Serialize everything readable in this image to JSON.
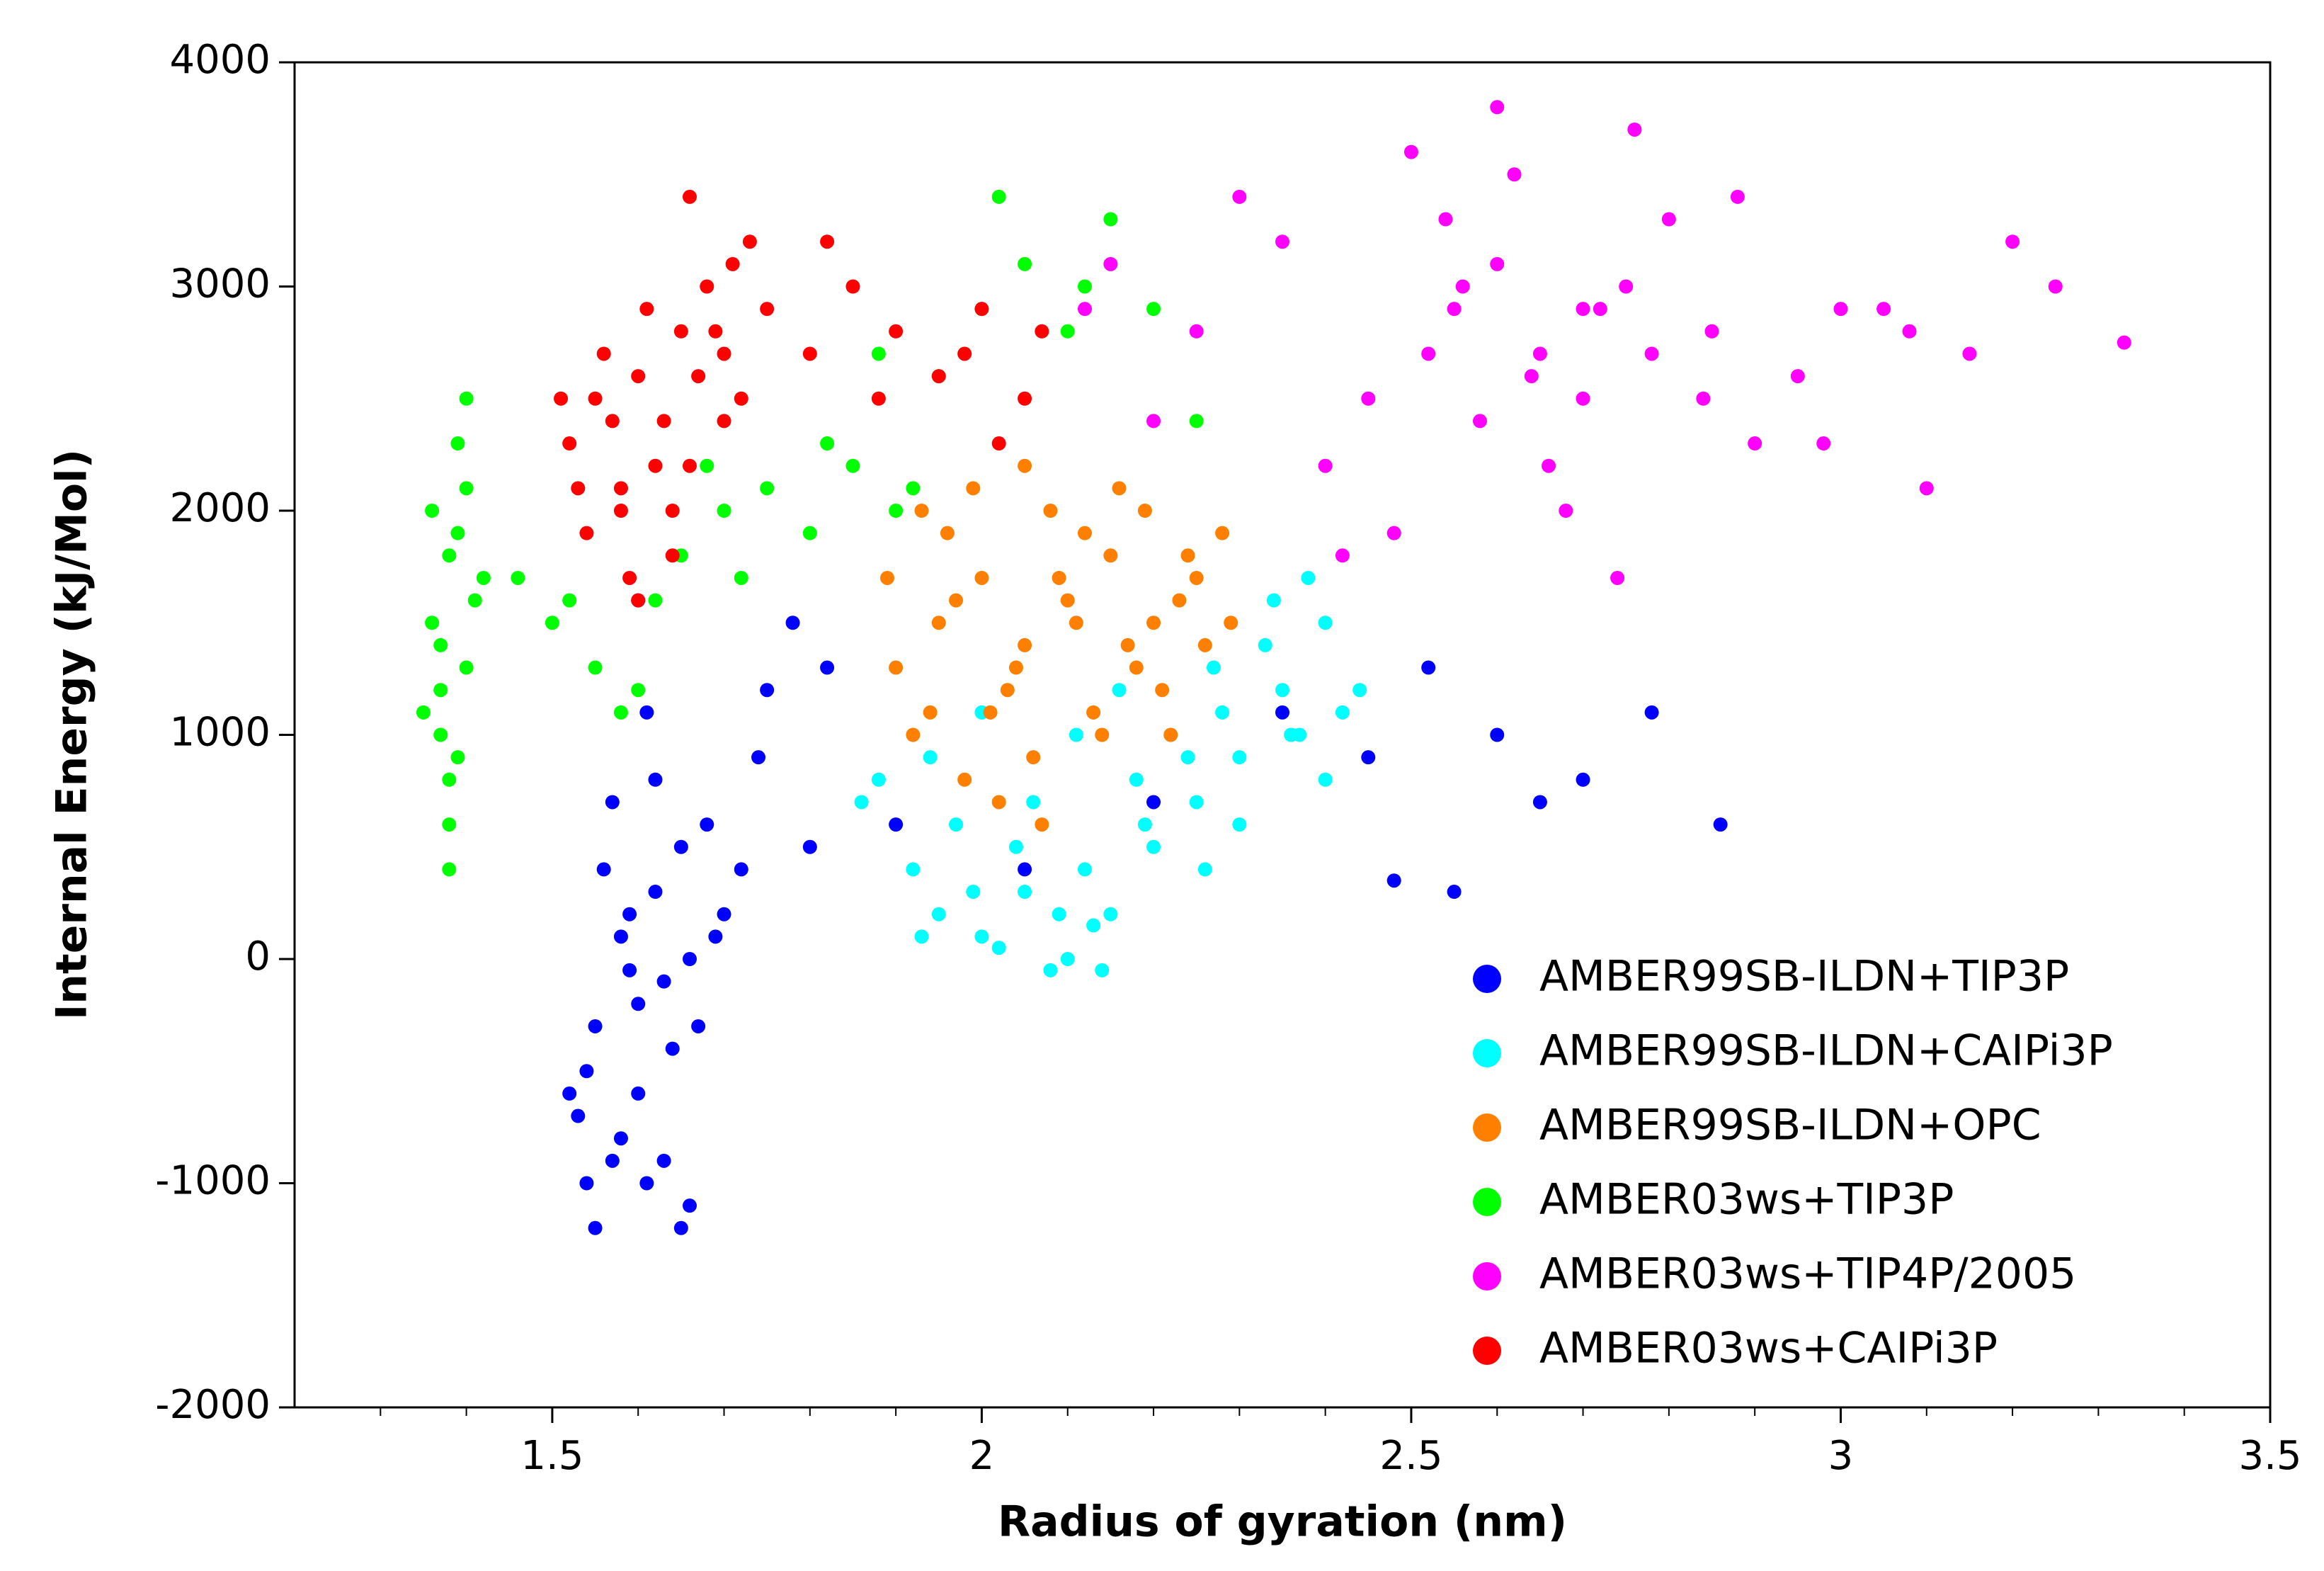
{
  "chart_data": {
    "type": "scatter",
    "xlabel": "Radius of gyration (nm)",
    "ylabel": "Internal Energy (kJ/Mol)",
    "xlim": [
      1.2,
      3.5
    ],
    "ylim": [
      -2000,
      4000
    ],
    "xticks": [
      1.5,
      2,
      2.5,
      3,
      3.5
    ],
    "xminorticks": [
      1.3,
      1.4,
      1.6,
      1.7,
      1.8,
      1.9,
      2.1,
      2.2,
      2.3,
      2.4,
      2.6,
      2.7,
      2.8,
      2.9,
      3.1,
      3.2,
      3.3,
      3.4
    ],
    "yticks": [
      -2000,
      -1000,
      0,
      1000,
      2000,
      3000,
      4000
    ],
    "legend_position": "lower-right",
    "series": [
      {
        "name": "AMBER99SB-ILDN+TIP3P",
        "color": "#0000ff",
        "x": [
          1.55,
          1.58,
          1.6,
          1.62,
          1.57,
          1.63,
          1.65,
          1.54,
          1.59,
          1.61,
          1.66,
          1.53,
          1.56,
          1.64,
          1.68,
          1.6,
          1.62,
          1.58,
          1.55,
          1.67,
          1.7,
          1.72,
          1.75,
          1.52,
          1.57,
          1.63,
          1.61,
          1.59,
          1.66,
          1.69,
          1.78,
          1.82,
          1.74,
          1.8,
          1.9,
          2.05,
          2.2,
          2.35,
          2.45,
          2.52,
          2.6,
          2.7,
          2.78,
          2.86,
          2.55,
          2.48,
          2.65,
          1.65,
          1.54,
          1.6
        ],
        "values": [
          -300,
          100,
          -600,
          300,
          -900,
          -100,
          500,
          -500,
          200,
          -1000,
          0,
          -700,
          400,
          -400,
          600,
          -200,
          800,
          -800,
          -1200,
          -300,
          200,
          400,
          1200,
          -600,
          700,
          -900,
          1100,
          -50,
          -1100,
          100,
          1500,
          1300,
          900,
          500,
          600,
          400,
          700,
          1100,
          900,
          1300,
          1000,
          800,
          1100,
          600,
          300,
          350,
          700,
          -1200,
          -1000,
          1600
        ]
      },
      {
        "name": "AMBER99SB-ILDN+CAIPi3P",
        "color": "#00ffff",
        "x": [
          1.88,
          1.92,
          1.95,
          2.0,
          2.05,
          2.1,
          2.15,
          2.2,
          2.25,
          2.3,
          2.35,
          2.4,
          2.42,
          1.9,
          1.97,
          2.02,
          2.08,
          2.12,
          2.18,
          2.22,
          2.28,
          2.33,
          2.38,
          1.86,
          1.94,
          2.0,
          2.06,
          2.11,
          2.16,
          2.24,
          2.3,
          2.36,
          2.4,
          2.44,
          1.99,
          2.04,
          2.13,
          2.19,
          2.27,
          2.34,
          1.93,
          2.09,
          2.26,
          2.37,
          2.14
        ],
        "values": [
          800,
          400,
          200,
          100,
          300,
          0,
          200,
          500,
          700,
          900,
          1200,
          1500,
          1100,
          1300,
          600,
          50,
          -50,
          400,
          800,
          1000,
          1100,
          1400,
          1700,
          700,
          900,
          1100,
          700,
          1000,
          1200,
          900,
          600,
          1000,
          800,
          1200,
          300,
          500,
          150,
          600,
          1300,
          1600,
          100,
          200,
          400,
          1000,
          -50
        ]
      },
      {
        "name": "AMBER99SB-ILDN+OPC",
        "color": "#ff8000",
        "x": [
          1.9,
          1.95,
          2.0,
          2.05,
          2.1,
          2.15,
          2.2,
          2.25,
          2.28,
          1.92,
          1.98,
          2.03,
          2.08,
          2.13,
          2.18,
          2.23,
          1.89,
          1.96,
          2.01,
          2.06,
          2.11,
          2.16,
          2.21,
          2.26,
          1.94,
          1.99,
          2.04,
          2.09,
          2.14,
          2.19,
          2.24,
          2.29,
          2.02,
          2.07,
          2.12,
          1.93,
          2.17,
          2.22,
          1.97,
          2.05
        ],
        "values": [
          1300,
          1500,
          1700,
          1400,
          1600,
          1800,
          1500,
          1700,
          1900,
          1000,
          800,
          1200,
          2000,
          1100,
          1300,
          1600,
          1700,
          1900,
          1100,
          900,
          1500,
          2100,
          1200,
          1400,
          1100,
          2100,
          1300,
          1700,
          1000,
          2000,
          1800,
          1500,
          700,
          600,
          1900,
          2000,
          1400,
          1000,
          1600,
          2200
        ]
      },
      {
        "name": "AMBER03ws+TIP3P",
        "color": "#00ff00",
        "x": [
          1.36,
          1.38,
          1.4,
          1.37,
          1.39,
          1.41,
          1.38,
          1.36,
          1.4,
          1.37,
          1.39,
          1.38,
          1.42,
          1.35,
          1.38,
          1.39,
          1.37,
          1.4,
          1.46,
          1.5,
          1.55,
          1.6,
          1.65,
          1.7,
          1.75,
          1.8,
          1.85,
          1.9,
          1.95,
          2.0,
          2.05,
          2.1,
          2.15,
          2.2,
          1.58,
          1.62,
          1.72,
          1.82,
          1.92,
          2.02,
          2.12,
          1.52,
          1.68,
          1.88,
          2.25
        ],
        "values": [
          1500,
          1800,
          2100,
          1200,
          900,
          1600,
          600,
          2000,
          1300,
          1000,
          2300,
          400,
          1700,
          1100,
          800,
          1900,
          1400,
          2500,
          1700,
          1500,
          1300,
          1200,
          1800,
          2000,
          2100,
          1900,
          2200,
          2000,
          2600,
          2900,
          3100,
          2800,
          3300,
          2900,
          1100,
          1600,
          1700,
          2300,
          2100,
          3400,
          3000,
          1600,
          2200,
          2700,
          2400
        ]
      },
      {
        "name": "AMBER03ws+TIP4P/2005",
        "color": "#ff00ff",
        "x": [
          2.15,
          2.25,
          2.35,
          2.45,
          2.55,
          2.65,
          2.75,
          2.85,
          2.95,
          3.05,
          3.15,
          3.25,
          3.33,
          2.2,
          2.3,
          2.4,
          2.5,
          2.6,
          2.7,
          2.8,
          2.9,
          3.0,
          3.1,
          3.2,
          2.52,
          2.58,
          2.62,
          2.68,
          2.72,
          2.56,
          2.64,
          2.48,
          2.76,
          2.84,
          2.12,
          2.42,
          2.88,
          2.98,
          3.08,
          2.66,
          2.54,
          2.74,
          2.6,
          2.7,
          2.78
        ],
        "values": [
          3100,
          2800,
          3200,
          2500,
          2900,
          2700,
          3000,
          2800,
          2600,
          2900,
          2700,
          3000,
          2750,
          2400,
          3400,
          2200,
          3600,
          3100,
          2500,
          3300,
          2300,
          2900,
          2100,
          3200,
          2700,
          2400,
          3500,
          2000,
          2900,
          3000,
          2600,
          1900,
          3700,
          2500,
          2900,
          1800,
          3400,
          2300,
          2800,
          2200,
          3300,
          1700,
          3800,
          2900,
          2700
        ]
      },
      {
        "name": "AMBER03ws+CAIPi3P",
        "color": "#ff0000",
        "x": [
          1.52,
          1.55,
          1.58,
          1.6,
          1.62,
          1.65,
          1.68,
          1.7,
          1.72,
          1.54,
          1.57,
          1.61,
          1.64,
          1.67,
          1.71,
          1.75,
          1.8,
          1.85,
          1.9,
          1.95,
          2.0,
          2.05,
          1.53,
          1.59,
          1.63,
          1.66,
          1.69,
          1.73,
          1.56,
          1.6,
          1.64,
          1.82,
          1.88,
          1.98,
          2.02,
          1.51,
          1.58,
          1.66,
          1.7,
          2.07
        ],
        "values": [
          2300,
          2500,
          2000,
          2600,
          2200,
          2800,
          3000,
          2700,
          2500,
          1900,
          2400,
          2900,
          1800,
          2600,
          3100,
          2900,
          2700,
          3000,
          2800,
          2600,
          2900,
          2500,
          2100,
          1700,
          2400,
          2200,
          2800,
          3200,
          2700,
          1600,
          2000,
          3200,
          2500,
          2700,
          2300,
          2500,
          2100,
          3400,
          2400,
          2800
        ]
      }
    ]
  }
}
